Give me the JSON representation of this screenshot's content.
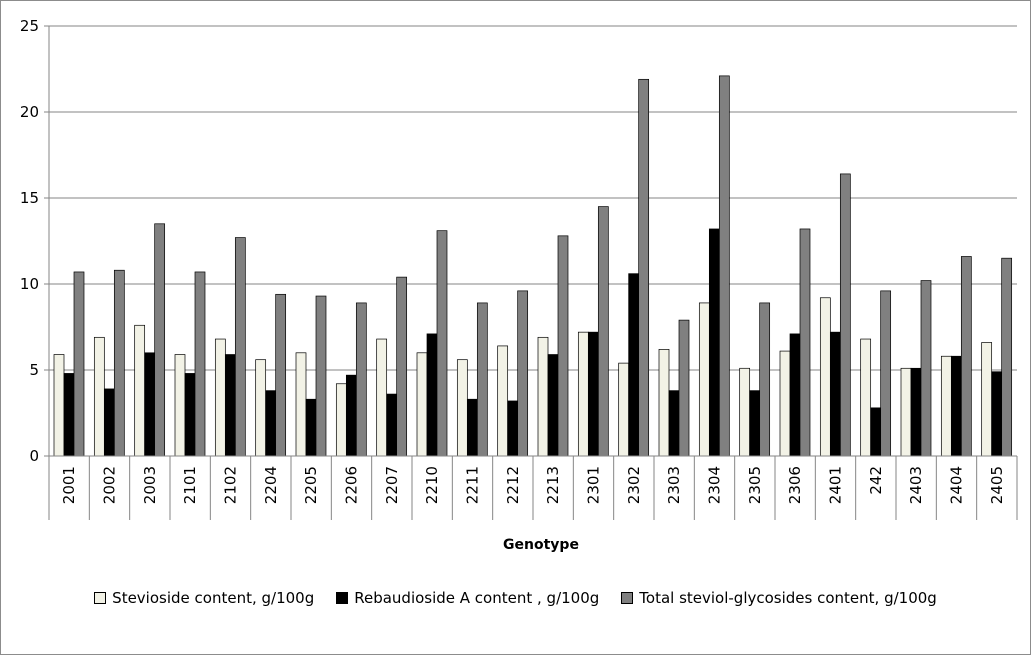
{
  "chart_data": {
    "type": "bar",
    "title": "",
    "xlabel": "Genotype",
    "ylabel": "",
    "ylim": [
      0,
      25
    ],
    "yticks": [
      0,
      5,
      10,
      15,
      20,
      25
    ],
    "grid": "horizontal",
    "legend_position": "bottom",
    "categories": [
      "2001",
      "2002",
      "2003",
      "2101",
      "2102",
      "2204",
      "2205",
      "2206",
      "2207",
      "2210",
      "2211",
      "2212",
      "2213",
      "2301",
      "2302",
      "2303",
      "2304",
      "2305",
      "2306",
      "2401",
      "242",
      "2403",
      "2404",
      "2405"
    ],
    "series": [
      {
        "name": "Stevioside content, g/100g",
        "color": "#f2f2e6",
        "values": [
          5.9,
          6.9,
          7.6,
          5.9,
          6.8,
          5.6,
          6.0,
          4.2,
          6.8,
          6.0,
          5.6,
          6.4,
          6.9,
          7.2,
          5.4,
          6.2,
          8.9,
          5.1,
          6.1,
          9.2,
          6.8,
          5.1,
          5.8,
          6.6
        ]
      },
      {
        "name": "Rebaudioside A content , g/100g",
        "color": "#000000",
        "values": [
          4.8,
          3.9,
          6.0,
          4.8,
          5.9,
          3.8,
          3.3,
          4.7,
          3.6,
          7.1,
          3.3,
          3.2,
          5.9,
          7.2,
          10.6,
          3.8,
          13.2,
          3.8,
          7.1,
          7.2,
          2.8,
          5.1,
          5.8,
          4.9
        ]
      },
      {
        "name": "Total steviol-glycosides content, g/100g",
        "color": "#808080",
        "values": [
          10.7,
          10.8,
          13.5,
          10.7,
          12.7,
          9.4,
          9.3,
          8.9,
          10.4,
          13.1,
          8.9,
          9.6,
          12.8,
          14.5,
          21.9,
          7.9,
          22.1,
          8.9,
          13.2,
          16.4,
          9.6,
          10.2,
          11.6,
          11.5
        ]
      }
    ]
  }
}
